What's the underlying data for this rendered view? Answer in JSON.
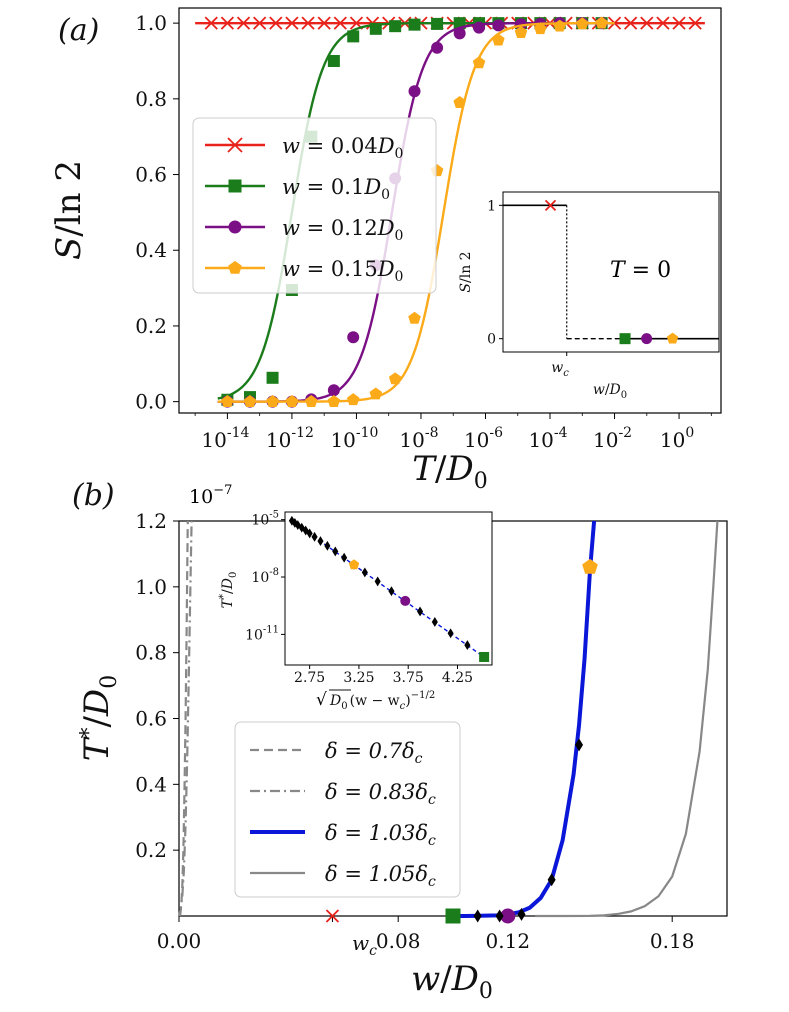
{
  "colors": {
    "red": "#e8231b",
    "green": "#1b7c1b",
    "purple": "#7b0f85",
    "orange": "#fbaa1a",
    "blue": "#0b17d8",
    "gray": "#888888",
    "black": "#000000"
  },
  "chart_data": [
    {
      "id": "a",
      "type": "line",
      "panel_label": "(a)",
      "xscale": "log10",
      "xlabel_var": "T",
      "xlabel_sub": "D",
      "xlabel_subidx": "0",
      "ylabel_main": "S",
      "ylabel_den": "ln 2",
      "xlim": [
        -15.5,
        1.3
      ],
      "ylim": [
        -0.03,
        1.04
      ],
      "xticks": [
        {
          "value": -14,
          "base": "10",
          "exp": "-14"
        },
        {
          "value": -12,
          "base": "10",
          "exp": "-12"
        },
        {
          "value": -10,
          "base": "10",
          "exp": "-10"
        },
        {
          "value": -8,
          "base": "10",
          "exp": "-8"
        },
        {
          "value": -6,
          "base": "10",
          "exp": "-6"
        },
        {
          "value": -4,
          "base": "10",
          "exp": "-4"
        },
        {
          "value": -2,
          "base": "10",
          "exp": "-2"
        },
        {
          "value": 0,
          "base": "10",
          "exp": "0"
        }
      ],
      "yticks": [
        {
          "value": 0.0,
          "label": "0.0"
        },
        {
          "value": 0.2,
          "label": "0.2"
        },
        {
          "value": 0.4,
          "label": "0.4"
        },
        {
          "value": 0.6,
          "label": "0.6"
        },
        {
          "value": 0.8,
          "label": "0.8"
        },
        {
          "value": 1.0,
          "label": "1.0"
        }
      ],
      "legend_position": "center-left",
      "series": [
        {
          "name": "w = 0.04D0",
          "lhs": "w",
          "rhs": "0.04",
          "sym": "D",
          "sub": "0",
          "color": "red",
          "marker": "x",
          "curve": {
            "kind": "const",
            "value": 1.0,
            "from": -15.0,
            "to": 0.8
          },
          "markers": {
            "x": [
              -14.5,
              -14.0,
              -13.5,
              -13.0,
              -12.5,
              -12.0,
              -11.5,
              -11.0,
              -10.5,
              -10.0,
              -9.5,
              -9.0,
              -8.5,
              -8.0,
              -7.5,
              -7.0,
              -6.5,
              -6.0,
              -5.5,
              -5.0,
              -4.5,
              -4.0,
              -3.5,
              -3.0,
              -2.5,
              -2.0,
              -1.5,
              -1.0,
              -0.5,
              0.0,
              0.5
            ],
            "y": [
              1,
              1,
              1,
              1,
              1,
              1,
              1,
              1,
              1,
              1,
              1,
              1,
              1,
              1,
              1,
              1,
              1,
              1,
              1,
              1,
              1,
              1,
              1,
              1,
              1,
              1,
              1,
              1,
              1,
              1,
              1
            ]
          }
        },
        {
          "name": "w = 0.1D0",
          "lhs": "w",
          "rhs": "0.1",
          "sym": "D",
          "sub": "0",
          "color": "green",
          "marker": "s",
          "curve": {
            "kind": "logistic",
            "center": -12.0,
            "width": 0.48,
            "from": -14.3,
            "to": -2.0
          },
          "markers": {
            "x": [
              -14.0,
              -13.3,
              -12.6,
              -12.0,
              -11.4,
              -10.7,
              -10.1,
              -9.4,
              -8.8,
              -8.2,
              -7.5,
              -6.8,
              -6.2,
              -5.6,
              -4.9,
              -4.3,
              -3.7,
              -3.0,
              -2.4
            ],
            "y": [
              0.005,
              0.012,
              0.063,
              0.295,
              0.7,
              0.9,
              0.965,
              0.985,
              0.992,
              0.996,
              0.998,
              1.0,
              1.0,
              1.0,
              1.0,
              1.0,
              1.0,
              1.0,
              1.0
            ]
          }
        },
        {
          "name": "w = 0.12D0",
          "lhs": "w",
          "rhs": "0.12",
          "sym": "D",
          "sub": "0",
          "color": "purple",
          "marker": "o",
          "curve": {
            "kind": "logistic",
            "center": -8.9,
            "width": 0.48,
            "from": -14.3,
            "to": -2.0
          },
          "markers": {
            "x": [
              -14.0,
              -13.3,
              -12.6,
              -12.0,
              -11.4,
              -10.7,
              -10.1,
              -9.4,
              -8.8,
              -8.2,
              -7.5,
              -6.8,
              -6.2,
              -5.6,
              -4.9,
              -4.3,
              -3.7,
              -3.0,
              -2.4
            ],
            "y": [
              0.0,
              0.0,
              0.0,
              0.0,
              0.006,
              0.03,
              0.17,
              0.36,
              0.59,
              0.82,
              0.935,
              0.973,
              0.988,
              0.994,
              0.997,
              0.998,
              1.0,
              1.0,
              1.0
            ]
          }
        },
        {
          "name": "w = 0.15D0",
          "lhs": "w",
          "rhs": "0.15",
          "sym": "D",
          "sub": "0",
          "color": "orange",
          "marker": "p",
          "curve": {
            "kind": "logistic",
            "center": -7.3,
            "width": 0.48,
            "from": -14.3,
            "to": -2.0
          },
          "markers": {
            "x": [
              -14.0,
              -13.3,
              -12.6,
              -12.0,
              -11.4,
              -10.7,
              -10.1,
              -9.4,
              -8.8,
              -8.2,
              -7.5,
              -6.8,
              -6.2,
              -5.6,
              -4.9,
              -4.3,
              -3.7,
              -3.0,
              -2.4
            ],
            "y": [
              0.0,
              0.0,
              0.0,
              0.0,
              0.0,
              0.0,
              0.005,
              0.02,
              0.06,
              0.22,
              0.61,
              0.79,
              0.895,
              0.955,
              0.975,
              0.985,
              0.992,
              0.998,
              1.0
            ]
          }
        }
      ],
      "inset": {
        "xlabel_var": "w",
        "xlabel_sub": "D",
        "xlabel_subidx": "0",
        "ylabel_main": "S",
        "ylabel_den": "ln 2",
        "tick_wc_var": "w",
        "tick_wc_sub": "c",
        "yticks": [
          {
            "value": 0,
            "label": "0"
          },
          {
            "value": 1,
            "label": "1"
          }
        ],
        "annotation_lhs": "T",
        "annotation_rhs": "0",
        "xlim": [
          0,
          1
        ],
        "ylim": [
          -0.1,
          1.1
        ],
        "wc": 0.295,
        "upper_segment": [
          0.0,
          0.295
        ],
        "dashed_segment": [
          0.295,
          0.56
        ],
        "lower_segment": [
          0.56,
          1.0
        ],
        "points": [
          {
            "x": 0.22,
            "y": 1,
            "color": "red",
            "marker": "x"
          },
          {
            "x": 0.565,
            "y": 0,
            "color": "green",
            "marker": "s"
          },
          {
            "x": 0.665,
            "y": 0,
            "color": "purple",
            "marker": "o"
          },
          {
            "x": 0.785,
            "y": 0,
            "color": "orange",
            "marker": "p"
          }
        ]
      }
    },
    {
      "id": "b",
      "type": "line",
      "panel_label": "(b)",
      "xlabel_var": "w",
      "xlabel_sub": "D",
      "xlabel_subidx": "0",
      "ylabel_main": "T",
      "ylabel_star": "*",
      "ylabel_sub": "D",
      "ylabel_subidx": "0",
      "xlim": [
        0.0,
        0.2
      ],
      "ylim": [
        0.0,
        1.2
      ],
      "offset_text": "10",
      "offset_exp": "−7",
      "xticks": [
        {
          "value": 0.0,
          "label": "0.00"
        },
        {
          "value": 0.08,
          "label": "0.08"
        },
        {
          "value": 0.12,
          "label": "0.12"
        },
        {
          "value": 0.18,
          "label": "0.18"
        }
      ],
      "wc_tick": {
        "value": 0.056,
        "var": "w",
        "sub": "c"
      },
      "yticks": [
        {
          "value": 0.2,
          "label": "0.2"
        },
        {
          "value": 0.4,
          "label": "0.4"
        },
        {
          "value": 0.6,
          "label": "0.6"
        },
        {
          "value": 0.8,
          "label": "0.8"
        },
        {
          "value": 1.0,
          "label": "1.0"
        },
        {
          "value": 1.2,
          "label": "1.2"
        }
      ],
      "legend_position": "lower-left",
      "series": [
        {
          "name": "δ = 0.7δc",
          "lhs": "δ",
          "rhs": "0.7δ",
          "sub": "c",
          "color": "gray",
          "style": "dashed",
          "width": 2.2,
          "x": [
            0.0004,
            0.0008,
            0.0012,
            0.0016,
            0.002,
            0.0024,
            0.0028,
            0.003,
            0.0032
          ],
          "y": [
            0.0,
            0.03,
            0.09,
            0.2,
            0.38,
            0.6,
            0.88,
            1.05,
            1.2
          ]
        },
        {
          "name": "δ = 0.83δc",
          "lhs": "δ",
          "rhs": "0.83δ",
          "sub": "c",
          "color": "gray",
          "style": "dashdot",
          "width": 2.2,
          "x": [
            0.0,
            0.0006,
            0.0012,
            0.0018,
            0.0024,
            0.003,
            0.0036,
            0.0042,
            0.0046
          ],
          "y": [
            0.0,
            0.02,
            0.06,
            0.14,
            0.28,
            0.48,
            0.74,
            1.02,
            1.2
          ]
        },
        {
          "name": "δ = 1.03δc",
          "lhs": "δ",
          "rhs": "1.03δ",
          "sub": "c",
          "color": "blue",
          "style": "solid",
          "width": 4,
          "x": [
            0.1,
            0.104,
            0.108,
            0.112,
            0.116,
            0.12,
            0.124,
            0.128,
            0.132,
            0.136,
            0.14,
            0.144,
            0.146,
            0.148,
            0.15,
            0.1515
          ],
          "y": [
            0.0,
            0.0,
            0.0005,
            0.001,
            0.002,
            0.005,
            0.011,
            0.025,
            0.055,
            0.11,
            0.23,
            0.43,
            0.58,
            0.78,
            1.05,
            1.2
          ]
        },
        {
          "name": "δ = 1.05δc",
          "lhs": "δ",
          "rhs": "1.05δ",
          "sub": "c",
          "color": "gray",
          "style": "solid",
          "width": 2.2,
          "x": [
            0.13,
            0.14,
            0.15,
            0.155,
            0.16,
            0.165,
            0.17,
            0.175,
            0.18,
            0.185,
            0.19,
            0.193,
            0.195,
            0.1965
          ],
          "y": [
            0.0,
            0.0,
            0.0005,
            0.002,
            0.006,
            0.014,
            0.03,
            0.06,
            0.12,
            0.25,
            0.5,
            0.75,
            1.0,
            1.2
          ]
        }
      ],
      "markers": [
        {
          "x": 0.056,
          "y": 0.0,
          "color": "red",
          "marker": "x"
        },
        {
          "x": 0.1,
          "y": 0.0,
          "color": "green",
          "marker": "s"
        },
        {
          "x": 0.12,
          "y": 0.0,
          "color": "purple",
          "marker": "o"
        },
        {
          "x": 0.15,
          "y": 1.06,
          "color": "orange",
          "marker": "p"
        },
        {
          "x": 0.109,
          "y": 0.0,
          "color": "black",
          "marker": "d"
        },
        {
          "x": 0.117,
          "y": 0.0,
          "color": "black",
          "marker": "d"
        },
        {
          "x": 0.125,
          "y": 0.005,
          "color": "black",
          "marker": "d"
        },
        {
          "x": 0.136,
          "y": 0.11,
          "color": "black",
          "marker": "d"
        },
        {
          "x": 0.146,
          "y": 0.52,
          "color": "black",
          "marker": "d"
        }
      ],
      "inset": {
        "type": "scatter",
        "xlabel_a": "D",
        "xlabel_aidx": "0",
        "xlabel_b": "(w − w",
        "xlabel_bsub": "c",
        "xlabel_exp": ")",
        "xlabel_pow": "−1/2",
        "ylabel_main": "T",
        "ylabel_star": "*",
        "ylabel_den": "D",
        "ylabel_denidx": "0",
        "xlim": [
          2.5,
          4.6
        ],
        "ylim_log10": [
          -12.6,
          -4.6
        ],
        "xticks": [
          {
            "value": 2.75,
            "label": "2.75"
          },
          {
            "value": 3.25,
            "label": "3.25"
          },
          {
            "value": 3.75,
            "label": "3.75"
          },
          {
            "value": 4.25,
            "label": "4.25"
          }
        ],
        "yticks": [
          {
            "value": -5,
            "base": "10",
            "exp": "-5"
          },
          {
            "value": -8,
            "base": "10",
            "exp": "-8"
          },
          {
            "value": -11,
            "base": "10",
            "exp": "-11"
          }
        ],
        "fit_line": {
          "color": "blue",
          "style": "dashed",
          "x": [
            2.55,
            4.55
          ],
          "y_log10": [
            -5.0,
            -12.3
          ]
        },
        "points_log10": {
          "x": [
            2.57,
            2.6,
            2.63,
            2.67,
            2.71,
            2.75,
            2.8,
            2.86,
            2.93,
            3.01,
            3.1,
            3.2,
            3.31,
            3.44,
            3.58,
            3.72,
            3.87,
            4.02,
            4.18,
            4.35,
            4.52
          ],
          "y": [
            -5.06,
            -5.17,
            -5.28,
            -5.42,
            -5.57,
            -5.72,
            -5.9,
            -6.12,
            -6.37,
            -6.66,
            -6.99,
            -7.36,
            -7.76,
            -8.23,
            -8.74,
            -9.25,
            -9.8,
            -10.35,
            -10.94,
            -11.56,
            -12.18
          ]
        },
        "highlight": [
          {
            "x": 3.2,
            "y_log10": -7.36,
            "color": "orange",
            "marker": "p"
          },
          {
            "x": 3.72,
            "y_log10": -9.25,
            "color": "purple",
            "marker": "o"
          },
          {
            "x": 4.52,
            "y_log10": -12.18,
            "color": "green",
            "marker": "s"
          }
        ]
      }
    }
  ]
}
